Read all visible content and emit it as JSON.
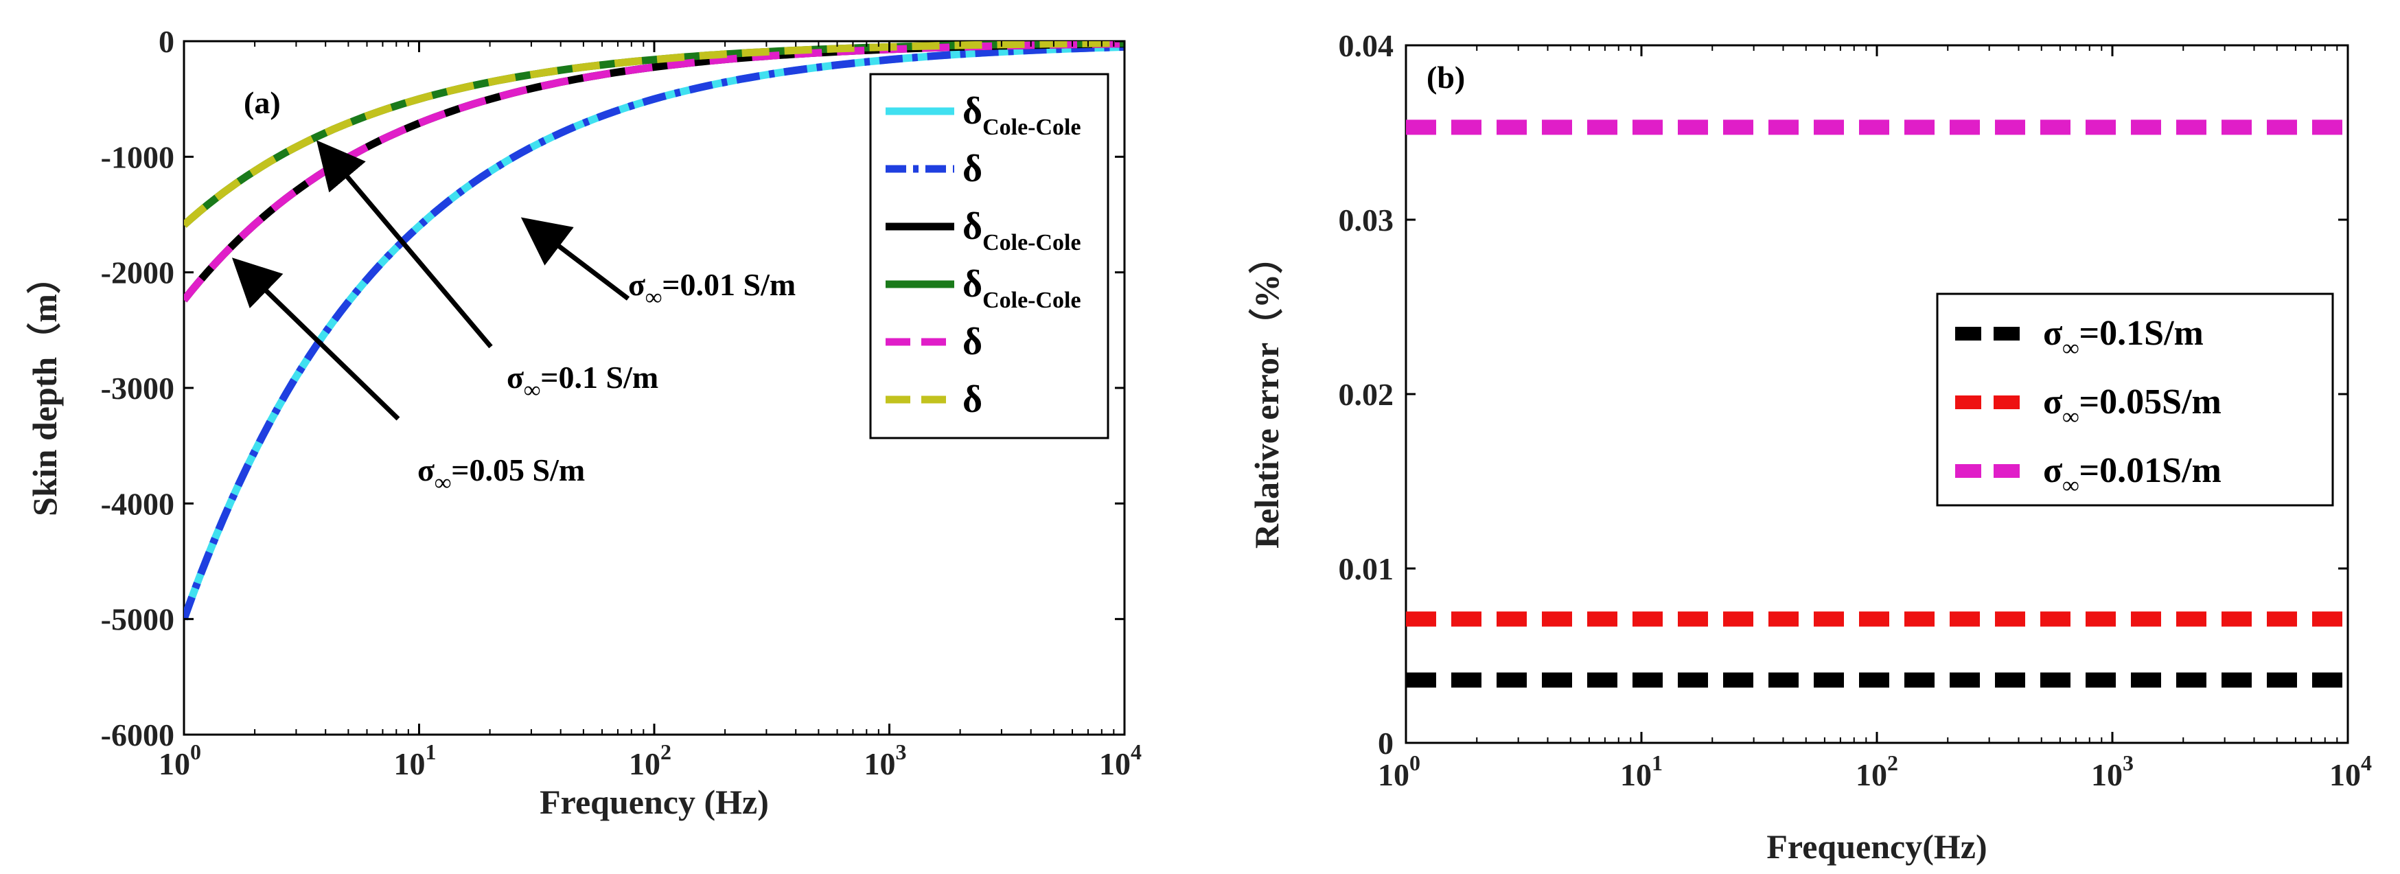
{
  "colors": {
    "cyan": "#40e0f0",
    "blue": "#1f3fe0",
    "black": "#000000",
    "green": "#1a7a1a",
    "magenta": "#e01ec8",
    "olive": "#c2c21e",
    "red": "#ee1111"
  },
  "chart_data": [
    {
      "type": "line",
      "panel_label": "(a)",
      "xlabel": "Frequency (Hz)",
      "ylabel": "Skin depth（m）",
      "xscale": "log",
      "xlim": [
        1,
        10000
      ],
      "ylim": [
        -6000,
        0
      ],
      "x_ticks": [
        {
          "base": "10",
          "exp": "0"
        },
        {
          "base": "10",
          "exp": "1"
        },
        {
          "base": "10",
          "exp": "2"
        },
        {
          "base": "10",
          "exp": "3"
        },
        {
          "base": "10",
          "exp": "4"
        }
      ],
      "y_ticks": [
        "0",
        "-1000",
        "-2000",
        "-3000",
        "-4000",
        "-5000",
        "-6000"
      ],
      "x": [
        1,
        10,
        100,
        1000,
        10000
      ],
      "series": [
        {
          "legend_main": "δ",
          "legend_sub": "Cole-Cole",
          "style": "solid",
          "color": "#40e0f0",
          "values": [
            -5000,
            -1600,
            -500,
            -160,
            -50
          ]
        },
        {
          "legend_main": "δ",
          "legend_sub": "",
          "style": "dash-dot",
          "color": "#1f3fe0",
          "values": [
            -5000,
            -1600,
            -500,
            -160,
            -50
          ]
        },
        {
          "legend_main": "δ",
          "legend_sub": "Cole-Cole",
          "style": "solid",
          "color": "#000000",
          "values": [
            -2240,
            -710,
            -224,
            -71,
            -22
          ]
        },
        {
          "legend_main": "δ",
          "legend_sub": "Cole-Cole",
          "style": "solid",
          "color": "#1a7a1a",
          "values": [
            -1590,
            -500,
            -159,
            -50,
            -16
          ]
        },
        {
          "legend_main": "δ",
          "legend_sub": "",
          "style": "dashed",
          "color": "#e01ec8",
          "values": [
            -2240,
            -710,
            -224,
            -71,
            -22
          ]
        },
        {
          "legend_main": "δ",
          "legend_sub": "",
          "style": "dashed",
          "color": "#c2c21e",
          "values": [
            -1590,
            -500,
            -159,
            -50,
            -16
          ]
        }
      ],
      "annotations": [
        {
          "sym": "σ",
          "sub": "∞",
          "text": "=0.01 S/m",
          "points_to_series": 0
        },
        {
          "sym": "σ",
          "sub": "∞",
          "text": "=0.1 S/m",
          "points_to_series": 3
        },
        {
          "sym": "σ",
          "sub": "∞",
          "text": "=0.05 S/m",
          "points_to_series": 2
        }
      ]
    },
    {
      "type": "line",
      "panel_label": "(b)",
      "xlabel": "Frequency(Hz)",
      "ylabel": "Relative error（%）",
      "xscale": "log",
      "xlim": [
        1,
        10000
      ],
      "ylim": [
        0,
        0.04
      ],
      "x_ticks": [
        {
          "base": "10",
          "exp": "0"
        },
        {
          "base": "10",
          "exp": "1"
        },
        {
          "base": "10",
          "exp": "2"
        },
        {
          "base": "10",
          "exp": "3"
        },
        {
          "base": "10",
          "exp": "4"
        }
      ],
      "y_ticks": [
        "0",
        "0.01",
        "0.02",
        "0.03",
        "0.04"
      ],
      "series": [
        {
          "sym": "σ",
          "sub": "∞",
          "text": "=0.1S/m",
          "color": "#000000",
          "style": "dashed",
          "value": 0.0036
        },
        {
          "sym": "σ",
          "sub": "∞",
          "text": "=0.05S/m",
          "color": "#ee1111",
          "style": "dashed",
          "value": 0.0071
        },
        {
          "sym": "σ",
          "sub": "∞",
          "text": "=0.01S/m",
          "color": "#e01ec8",
          "style": "dashed",
          "value": 0.0353
        }
      ]
    }
  ]
}
